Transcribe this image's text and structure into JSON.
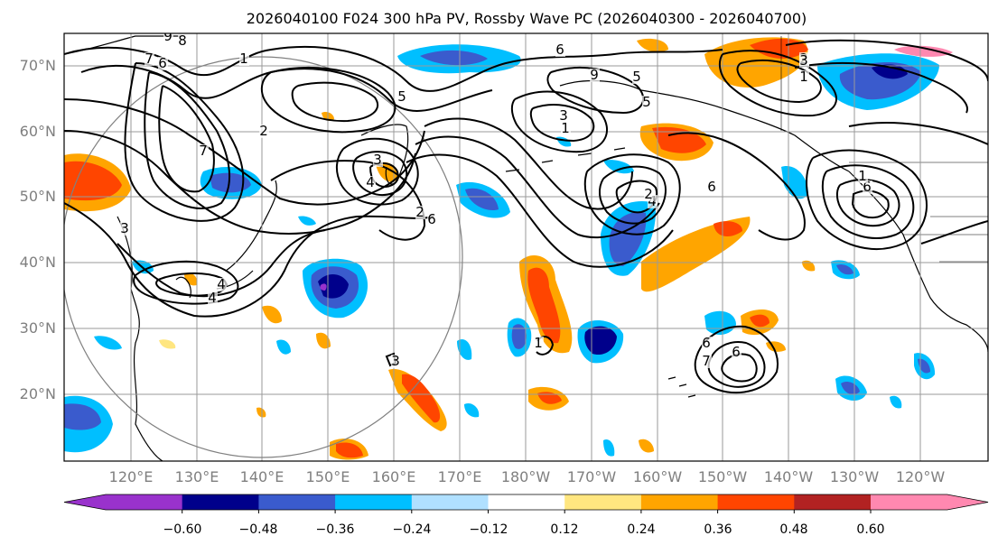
{
  "title": "2026040100 F024 300 hPa PV, Rossby Wave PC (2026040300 - 2026040700)",
  "map": {
    "lat_labels": [
      "70°N",
      "60°N",
      "50°N",
      "40°N",
      "30°N",
      "20°N"
    ],
    "lon_labels": [
      "120°E",
      "130°E",
      "140°E",
      "150°E",
      "160°E",
      "170°E",
      "180°W",
      "170°W",
      "160°W",
      "150°W",
      "140°W",
      "130°W",
      "120°W"
    ],
    "contour_labels": [
      "9",
      "8",
      "7",
      "6",
      "1",
      "2",
      "7",
      "3",
      "4",
      "4",
      "5",
      "6",
      "9",
      "3",
      "4",
      "2",
      "6",
      "3",
      "5",
      "4",
      "6",
      "2",
      "1",
      "6",
      "1",
      "5",
      "6",
      "7",
      "6",
      "3",
      "1",
      "2",
      "1",
      "3"
    ]
  },
  "colorbar": {
    "ticks": [
      "−0.60",
      "−0.48",
      "−0.36",
      "−0.24",
      "−0.12",
      "0.12",
      "0.24",
      "0.36",
      "0.48",
      "0.60"
    ],
    "colors": [
      "#9932cc",
      "#00008b",
      "#3a5bcd",
      "#00bfff",
      "#b0e0ff",
      "#ffffff",
      "#ffe680",
      "#ffa500",
      "#ff4500",
      "#b22222",
      "#ff88b0"
    ]
  }
}
